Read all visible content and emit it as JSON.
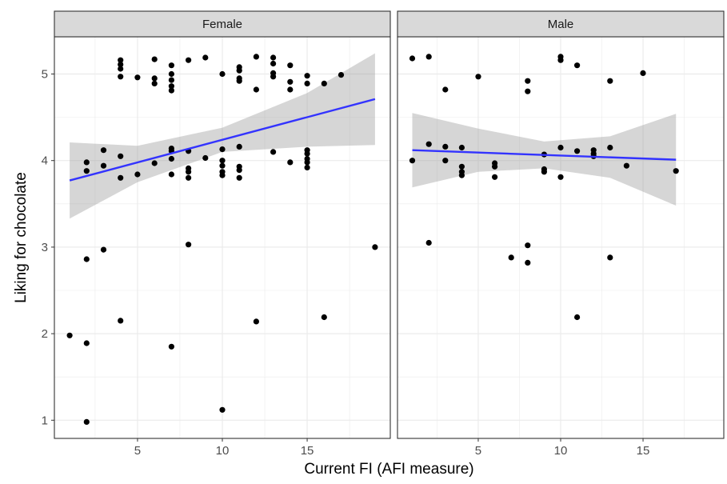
{
  "chart_data": {
    "type": "scatter",
    "xlabel": "Current FI (AFI measure)",
    "ylabel": "Liking for chocolate",
    "xlim": [
      0.1,
      19.9
    ],
    "ylim": [
      0.79,
      5.43
    ],
    "x_ticks": [
      5,
      10,
      15
    ],
    "y_ticks": [
      1,
      2,
      3,
      4,
      5
    ],
    "grid": true,
    "colors": {
      "points": "#000000",
      "fit_line": "#3333ff",
      "confidence_band": "#999999",
      "strip_fill": "#d9d9d9",
      "grid": "#ebebeb"
    },
    "panels": [
      {
        "strip_label": "Female",
        "points": [
          [
            1,
            1.98
          ],
          [
            2,
            0.98
          ],
          [
            2,
            1.89
          ],
          [
            2,
            2.86
          ],
          [
            2,
            3.88
          ],
          [
            2,
            3.98
          ],
          [
            3,
            2.97
          ],
          [
            3,
            3.94
          ],
          [
            3,
            4.12
          ],
          [
            4,
            2.15
          ],
          [
            4,
            3.8
          ],
          [
            4,
            4.05
          ],
          [
            4,
            4.97
          ],
          [
            4,
            5.06
          ],
          [
            4,
            5.11
          ],
          [
            4,
            5.16
          ],
          [
            5,
            3.84
          ],
          [
            5,
            4.96
          ],
          [
            6,
            3.97
          ],
          [
            6,
            4.89
          ],
          [
            6,
            4.95
          ],
          [
            6,
            5.17
          ],
          [
            7,
            1.85
          ],
          [
            7,
            3.84
          ],
          [
            7,
            4.02
          ],
          [
            7,
            4.11
          ],
          [
            7,
            4.14
          ],
          [
            7,
            4.81
          ],
          [
            7,
            4.86
          ],
          [
            7,
            4.93
          ],
          [
            7,
            5.0
          ],
          [
            7,
            5.1
          ],
          [
            8,
            3.03
          ],
          [
            8,
            3.8
          ],
          [
            8,
            3.87
          ],
          [
            8,
            3.91
          ],
          [
            8,
            4.11
          ],
          [
            8,
            5.16
          ],
          [
            9,
            4.03
          ],
          [
            9,
            5.19
          ],
          [
            10,
            1.12
          ],
          [
            10,
            3.83
          ],
          [
            10,
            3.87
          ],
          [
            10,
            3.94
          ],
          [
            10,
            4.0
          ],
          [
            10,
            4.13
          ],
          [
            10,
            5.0
          ],
          [
            11,
            3.8
          ],
          [
            11,
            3.89
          ],
          [
            11,
            3.93
          ],
          [
            11,
            4.16
          ],
          [
            11,
            4.92
          ],
          [
            11,
            4.95
          ],
          [
            11,
            5.04
          ],
          [
            11,
            5.08
          ],
          [
            12,
            2.14
          ],
          [
            12,
            4.82
          ],
          [
            12,
            5.2
          ],
          [
            13,
            4.1
          ],
          [
            13,
            4.97
          ],
          [
            13,
            5.01
          ],
          [
            13,
            5.12
          ],
          [
            13,
            5.19
          ],
          [
            14,
            3.98
          ],
          [
            14,
            4.82
          ],
          [
            14,
            4.91
          ],
          [
            14,
            5.1
          ],
          [
            15,
            3.92
          ],
          [
            15,
            3.98
          ],
          [
            15,
            4.02
          ],
          [
            15,
            4.08
          ],
          [
            15,
            4.12
          ],
          [
            15,
            4.89
          ],
          [
            15,
            4.98
          ],
          [
            16,
            2.19
          ],
          [
            16,
            4.89
          ],
          [
            17,
            4.99
          ],
          [
            19,
            3.0
          ]
        ],
        "fit": {
          "x0": 1,
          "y0": 3.77,
          "x1": 19,
          "y1": 4.71
        },
        "ci_band": {
          "x": [
            1,
            5,
            10,
            15,
            19
          ],
          "lower": [
            3.33,
            3.75,
            4.1,
            4.16,
            4.18
          ],
          "upper": [
            4.21,
            4.17,
            4.38,
            4.78,
            5.24
          ]
        }
      },
      {
        "strip_label": "Male",
        "points": [
          [
            1,
            4.0
          ],
          [
            1,
            5.18
          ],
          [
            2,
            3.05
          ],
          [
            2,
            4.19
          ],
          [
            2,
            5.2
          ],
          [
            3,
            4.0
          ],
          [
            3,
            4.16
          ],
          [
            3,
            4.82
          ],
          [
            4,
            3.83
          ],
          [
            4,
            3.87
          ],
          [
            4,
            3.93
          ],
          [
            4,
            4.15
          ],
          [
            5,
            4.97
          ],
          [
            6,
            3.81
          ],
          [
            6,
            3.93
          ],
          [
            6,
            3.97
          ],
          [
            7,
            2.88
          ],
          [
            8,
            2.82
          ],
          [
            8,
            3.02
          ],
          [
            8,
            4.8
          ],
          [
            8,
            4.92
          ],
          [
            9,
            3.87
          ],
          [
            9,
            3.9
          ],
          [
            9,
            4.07
          ],
          [
            10,
            3.81
          ],
          [
            10,
            4.15
          ],
          [
            10,
            5.16
          ],
          [
            10,
            5.2
          ],
          [
            11,
            2.19
          ],
          [
            11,
            4.11
          ],
          [
            11,
            5.1
          ],
          [
            12,
            4.05
          ],
          [
            12,
            4.08
          ],
          [
            12,
            4.12
          ],
          [
            13,
            2.88
          ],
          [
            13,
            4.15
          ],
          [
            13,
            4.92
          ],
          [
            14,
            3.94
          ],
          [
            15,
            5.01
          ],
          [
            17,
            3.88
          ]
        ],
        "fit": {
          "x0": 1,
          "y0": 4.12,
          "x1": 17,
          "y1": 4.01
        },
        "ci_band": {
          "x": [
            1,
            5,
            9,
            13,
            17
          ],
          "lower": [
            3.69,
            3.87,
            3.91,
            3.8,
            3.48
          ],
          "upper": [
            4.55,
            4.37,
            4.22,
            4.28,
            4.54
          ]
        }
      }
    ]
  }
}
